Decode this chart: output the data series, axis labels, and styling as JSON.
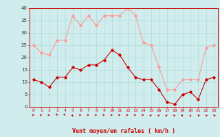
{
  "hours": [
    0,
    1,
    2,
    3,
    4,
    5,
    6,
    7,
    8,
    9,
    10,
    11,
    12,
    13,
    14,
    15,
    16,
    17,
    18,
    19,
    20,
    21,
    22,
    23
  ],
  "wind_avg": [
    11,
    10,
    8,
    12,
    12,
    16,
    15,
    17,
    17,
    19,
    23,
    21,
    16,
    12,
    11,
    11,
    7,
    2,
    1,
    5,
    6,
    3,
    11,
    12
  ],
  "wind_gust": [
    25,
    22,
    21,
    27,
    27,
    37,
    33,
    37,
    33,
    37,
    37,
    37,
    40,
    37,
    26,
    25,
    16,
    7,
    7,
    11,
    11,
    11,
    24,
    25
  ],
  "wind_dirs": [
    90,
    90,
    90,
    45,
    45,
    135,
    90,
    90,
    90,
    90,
    90,
    90,
    90,
    90,
    90,
    135,
    135,
    135,
    135,
    135,
    180,
    225,
    225,
    225
  ],
  "avg_color": "#cc0000",
  "gust_color": "#ff9999",
  "bg_color": "#d0ecec",
  "grid_color": "#aadddd",
  "xlabel": "Vent moyen/en rafales ( km/h )",
  "ylim": [
    0,
    40
  ],
  "yticks": [
    0,
    5,
    10,
    15,
    20,
    25,
    30,
    35,
    40
  ]
}
